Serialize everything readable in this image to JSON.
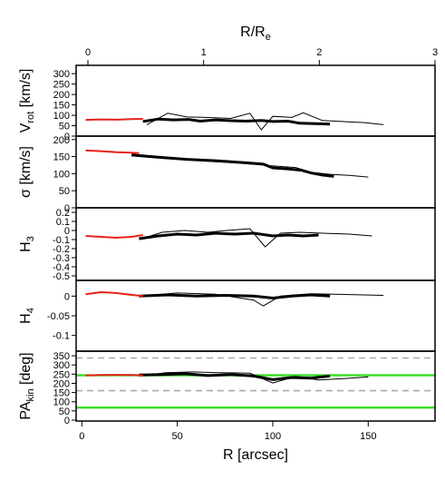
{
  "chart_data": {
    "type": "line",
    "x_bottom": {
      "label": "R [arcsec]",
      "ticks": [
        0,
        50,
        100,
        150
      ],
      "range": [
        -3,
        185
      ]
    },
    "x_top": {
      "label_main": "R/R",
      "label_sub": "e",
      "ticks": [
        0,
        1,
        2,
        3
      ],
      "range": [
        0,
        3
      ]
    },
    "panels": [
      {
        "id": "vrot",
        "label_main": "V",
        "label_sub": "rot",
        "label_suffix": " [km/s]",
        "ticks": [
          0,
          50,
          100,
          150,
          200,
          250,
          300
        ],
        "ylim": [
          0,
          340
        ],
        "red": [
          [
            2,
            78
          ],
          [
            10,
            80
          ],
          [
            18,
            79
          ],
          [
            26,
            82
          ],
          [
            32,
            83
          ]
        ],
        "inner": [
          [
            32,
            70
          ],
          [
            40,
            82
          ],
          [
            48,
            78
          ],
          [
            56,
            80
          ],
          [
            62,
            72
          ],
          [
            70,
            78
          ],
          [
            78,
            74
          ],
          [
            86,
            72
          ],
          [
            94,
            75
          ],
          [
            100,
            70
          ],
          [
            108,
            72
          ],
          [
            114,
            62
          ],
          [
            122,
            60
          ],
          [
            130,
            58
          ]
        ],
        "outer": [
          [
            34,
            55
          ],
          [
            45,
            110
          ],
          [
            55,
            92
          ],
          [
            65,
            90
          ],
          [
            78,
            85
          ],
          [
            88,
            110
          ],
          [
            94,
            30
          ],
          [
            100,
            95
          ],
          [
            110,
            90
          ],
          [
            116,
            112
          ],
          [
            126,
            75
          ],
          [
            136,
            70
          ],
          [
            148,
            65
          ],
          [
            158,
            55
          ]
        ]
      },
      {
        "id": "sigma",
        "label_main": "σ [km/s]",
        "label_sub": "",
        "label_suffix": "",
        "ticks": [
          0,
          50,
          100,
          150,
          200
        ],
        "ylim": [
          0,
          210
        ],
        "red": [
          [
            2,
            168
          ],
          [
            10,
            166
          ],
          [
            18,
            163
          ],
          [
            24,
            162
          ],
          [
            30,
            160
          ]
        ],
        "inner": [
          [
            26,
            155
          ],
          [
            40,
            148
          ],
          [
            55,
            142
          ],
          [
            70,
            138
          ],
          [
            85,
            132
          ],
          [
            95,
            128
          ],
          [
            100,
            117
          ],
          [
            108,
            114
          ],
          [
            115,
            110
          ],
          [
            120,
            102
          ],
          [
            126,
            96
          ],
          [
            132,
            92
          ]
        ],
        "outer": [
          [
            26,
            152
          ],
          [
            40,
            146
          ],
          [
            55,
            140
          ],
          [
            70,
            135
          ],
          [
            85,
            130
          ],
          [
            95,
            125
          ],
          [
            102,
            122
          ],
          [
            112,
            118
          ],
          [
            120,
            104
          ],
          [
            130,
            98
          ],
          [
            140,
            95
          ],
          [
            150,
            90
          ]
        ]
      },
      {
        "id": "h3",
        "label_main": "H",
        "label_sub": "3",
        "label_suffix": "",
        "ticks": [
          -0.5,
          -0.4,
          -0.3,
          -0.2,
          -0.1,
          0.0,
          0.1,
          0.2
        ],
        "ylim": [
          -0.55,
          0.25
        ],
        "red": [
          [
            2,
            -0.06
          ],
          [
            10,
            -0.07
          ],
          [
            18,
            -0.08
          ],
          [
            26,
            -0.07
          ],
          [
            32,
            -0.05
          ]
        ],
        "inner": [
          [
            30,
            -0.09
          ],
          [
            40,
            -0.06
          ],
          [
            50,
            -0.04
          ],
          [
            60,
            -0.05
          ],
          [
            70,
            -0.03
          ],
          [
            80,
            -0.04
          ],
          [
            90,
            -0.03
          ],
          [
            100,
            -0.06
          ],
          [
            108,
            -0.05
          ],
          [
            116,
            -0.06
          ],
          [
            124,
            -0.05
          ]
        ],
        "outer": [
          [
            30,
            -0.1
          ],
          [
            42,
            -0.02
          ],
          [
            54,
            0.0
          ],
          [
            66,
            -0.02
          ],
          [
            76,
            0.0
          ],
          [
            88,
            0.02
          ],
          [
            96,
            -0.18
          ],
          [
            104,
            -0.03
          ],
          [
            114,
            -0.02
          ],
          [
            126,
            -0.03
          ],
          [
            140,
            -0.04
          ],
          [
            152,
            -0.06
          ]
        ]
      },
      {
        "id": "h4",
        "label_main": "H",
        "label_sub": "4",
        "label_suffix": "",
        "ticks": [
          0.0,
          -0.05,
          -0.1
        ],
        "ylim": [
          -0.14,
          0.04
        ],
        "red": [
          [
            2,
            0.005
          ],
          [
            10,
            0.01
          ],
          [
            18,
            0.008
          ],
          [
            26,
            0.003
          ],
          [
            32,
            0.0
          ]
        ],
        "inner": [
          [
            30,
            0.0
          ],
          [
            45,
            0.003
          ],
          [
            60,
            0.0
          ],
          [
            75,
            0.002
          ],
          [
            90,
            0.0
          ],
          [
            100,
            -0.005
          ],
          [
            110,
            0.0
          ],
          [
            120,
            0.003
          ],
          [
            130,
            0.0
          ]
        ],
        "outer": [
          [
            30,
            0.0
          ],
          [
            50,
            0.008
          ],
          [
            70,
            0.005
          ],
          [
            90,
            -0.01
          ],
          [
            95,
            -0.025
          ],
          [
            104,
            0.0
          ],
          [
            120,
            0.006
          ],
          [
            140,
            0.004
          ],
          [
            158,
            0.002
          ]
        ]
      },
      {
        "id": "pa",
        "label_main": "PA",
        "label_sub": "kin",
        "label_suffix": " [deg]",
        "ticks": [
          0,
          50,
          100,
          150,
          200,
          250,
          300,
          350
        ],
        "ylim": [
          -5,
          375
        ],
        "red": [
          [
            2,
            243
          ],
          [
            10,
            245
          ],
          [
            18,
            246
          ],
          [
            26,
            245
          ],
          [
            32,
            243
          ]
        ],
        "inner": [
          [
            30,
            245
          ],
          [
            42,
            248
          ],
          [
            54,
            252
          ],
          [
            66,
            242
          ],
          [
            78,
            248
          ],
          [
            90,
            240
          ],
          [
            100,
            220
          ],
          [
            110,
            232
          ],
          [
            120,
            228
          ],
          [
            130,
            240
          ]
        ],
        "outer": [
          [
            30,
            240
          ],
          [
            44,
            258
          ],
          [
            58,
            262
          ],
          [
            72,
            258
          ],
          [
            88,
            255
          ],
          [
            100,
            202
          ],
          [
            112,
            238
          ],
          [
            124,
            218
          ],
          [
            136,
            225
          ],
          [
            150,
            235
          ]
        ],
        "hlines_green": [
          244,
          68
        ],
        "hlines_dashed": [
          338,
          160
        ]
      }
    ],
    "colors": {
      "red": "#e8221b",
      "green": "#33dd22",
      "dashed": "#aaaaaa",
      "contour": "#000000"
    }
  }
}
